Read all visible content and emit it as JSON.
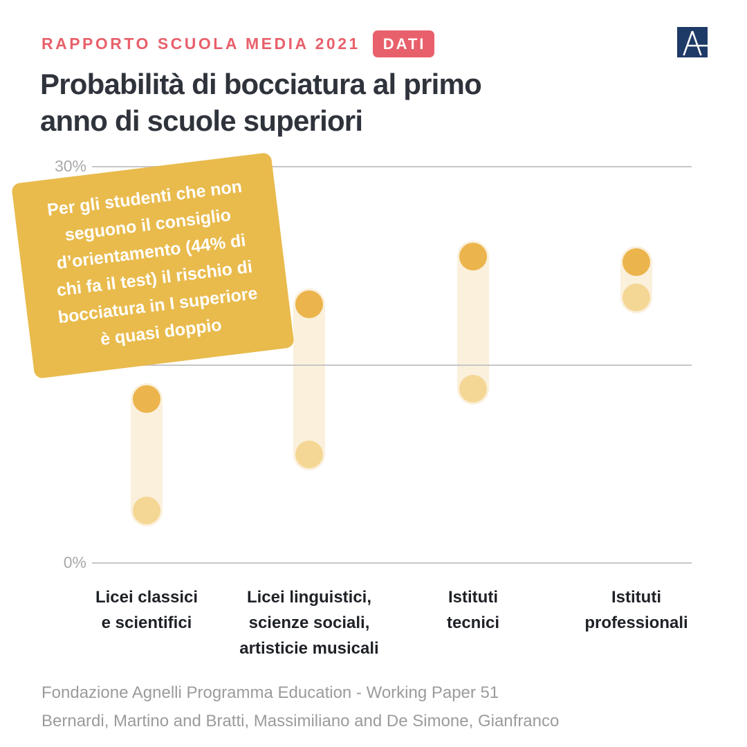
{
  "header": {
    "eyebrow": "RAPPORTO SCUOLA MEDIA 2021",
    "badge": "DATI",
    "accent_color": "#E8606B",
    "logo": {
      "letter": "A",
      "color": "#1E3A66"
    }
  },
  "title": "Probabilità di bocciatura al primo\nanno di scuole superiori",
  "annotation": {
    "text": "Per gli studenti che non\nseguono il consiglio\nd’orientamento (44% di\nchi fa il test) il rischio di\nbocciatura in I superiore\nè quasi doppio",
    "bg_color": "#E9BB4D",
    "text_color": "#FFFFFF"
  },
  "chart_data": {
    "type": "dumbbell",
    "title": "Probabilità di bocciatura al primo anno di scuole superiori",
    "ylabel": "",
    "xlabel": "",
    "ylim": [
      0,
      30
    ],
    "yticks": [
      {
        "pct": 30,
        "label": "30%"
      },
      {
        "pct": 15,
        "label": ""
      },
      {
        "pct": 0,
        "label": "0%"
      }
    ],
    "grid_on": true,
    "grid_color": "#C6C6C6",
    "tick_label_color": "#A9A9A9",
    "band_color": "#FAF0DC",
    "categories": [
      "Licei classici\ne scientifici",
      "Licei linguistici,\nscienze sociali,\nartisticie musicali",
      "Istituti\ntecnici",
      "Istituti\nprofessionali"
    ],
    "series": [
      {
        "name": "dot-dark-high",
        "color": "#ECB44C",
        "values": [
          12.4,
          19.6,
          23.2,
          22.8
        ]
      },
      {
        "name": "dot-light-low",
        "color": "#F5D795",
        "values": [
          4.0,
          8.2,
          13.2,
          20.1
        ]
      }
    ]
  },
  "footer": {
    "line1": "Fondazione Agnelli Programma Education - Working Paper 51",
    "line2": "Bernardi, Martino and Bratti, Massimiliano and De Simone, Gianfranco"
  }
}
